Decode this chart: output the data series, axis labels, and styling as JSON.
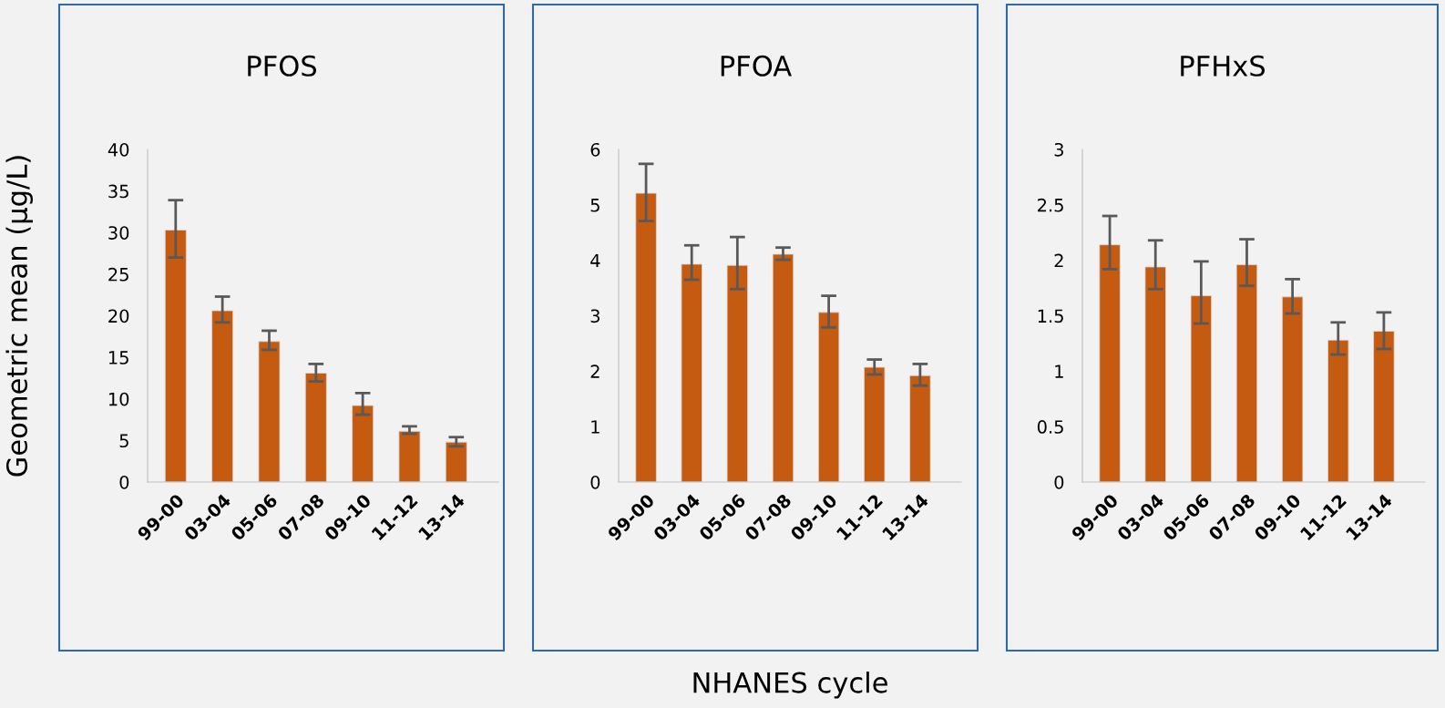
{
  "chart_data": [
    {
      "type": "bar",
      "title": "PFOS",
      "ylabel": "Geometric mean (µg/L)",
      "categories": [
        "99-00",
        "03-04",
        "05-06",
        "07-08",
        "09-10",
        "11-12",
        "13-14"
      ],
      "values": [
        30.3,
        20.6,
        16.9,
        13.1,
        9.2,
        6.1,
        4.8
      ],
      "color": "#c55a11",
      "errors": [
        [
          27.0,
          33.9
        ],
        [
          19.2,
          22.3
        ],
        [
          15.9,
          18.2
        ],
        [
          12.1,
          14.2
        ],
        [
          8.1,
          10.7
        ],
        [
          5.8,
          6.7
        ],
        [
          4.3,
          5.4
        ]
      ],
      "ylim": [
        0,
        40
      ],
      "yticks": [
        0,
        5,
        10,
        15,
        20,
        25,
        30,
        35,
        40
      ],
      "grid": false,
      "legend": false
    },
    {
      "type": "bar",
      "title": "PFOA",
      "xlabel": "NHANES cycle",
      "categories": [
        "99-00",
        "03-04",
        "05-06",
        "07-08",
        "09-10",
        "11-12",
        "13-14"
      ],
      "values": [
        5.21,
        3.93,
        3.91,
        4.11,
        3.06,
        2.07,
        1.92
      ],
      "color": "#c55a11",
      "errors": [
        [
          4.71,
          5.74
        ],
        [
          3.65,
          4.27
        ],
        [
          3.48,
          4.42
        ],
        [
          4.01,
          4.23
        ],
        [
          2.79,
          3.36
        ],
        [
          1.94,
          2.21
        ],
        [
          1.74,
          2.13
        ]
      ],
      "ylim": [
        0,
        6
      ],
      "yticks": [
        0,
        1,
        2,
        3,
        4,
        5,
        6
      ],
      "grid": false,
      "legend": false
    },
    {
      "type": "bar",
      "title": "PFHxS",
      "categories": [
        "99-00",
        "03-04",
        "05-06",
        "07-08",
        "09-10",
        "11-12",
        "13-14"
      ],
      "values": [
        2.14,
        1.94,
        1.68,
        1.96,
        1.67,
        1.28,
        1.36
      ],
      "color": "#c55a11",
      "errors": [
        [
          1.92,
          2.4
        ],
        [
          1.74,
          2.18
        ],
        [
          1.43,
          1.99
        ],
        [
          1.77,
          2.19
        ],
        [
          1.52,
          1.83
        ],
        [
          1.15,
          1.44
        ],
        [
          1.2,
          1.53
        ]
      ],
      "ylim": [
        0,
        3
      ],
      "yticks": [
        0,
        {
          "value": 0.5,
          "label": "0.5"
        },
        1,
        {
          "value": 1.5,
          "label": "1.5"
        },
        2,
        {
          "value": 2.5,
          "label": "2.5"
        },
        3
      ],
      "grid": false,
      "legend": false
    }
  ]
}
